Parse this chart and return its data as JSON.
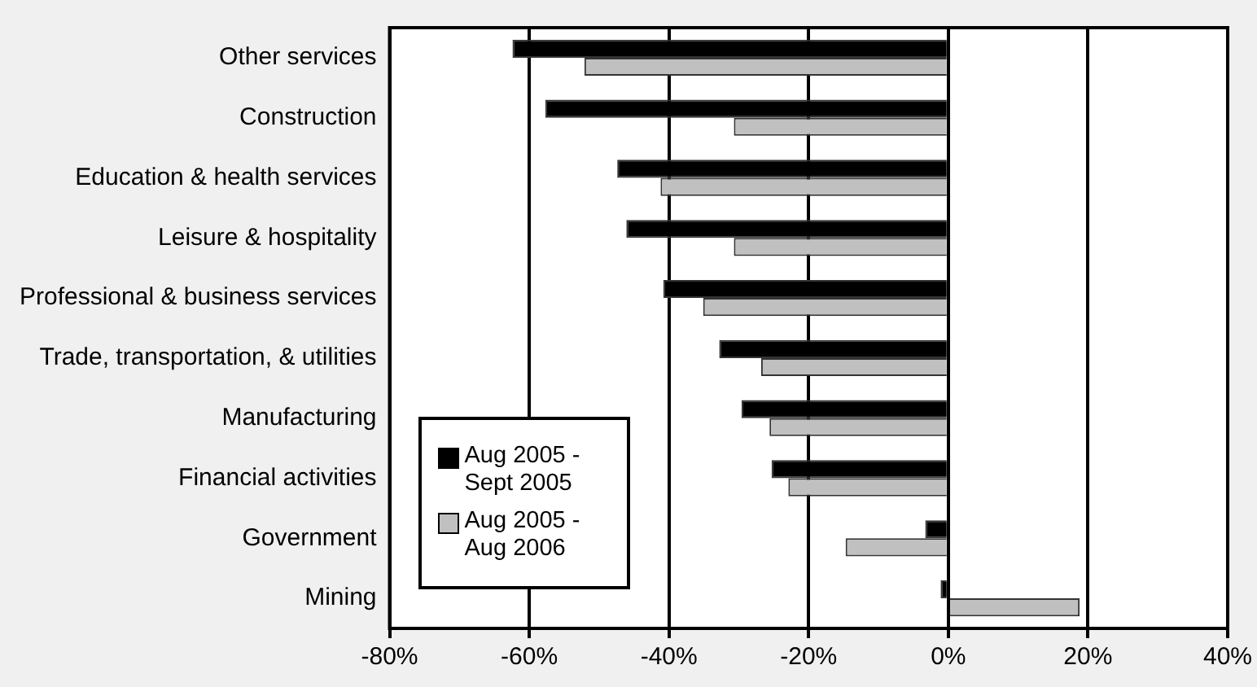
{
  "chart_data": {
    "type": "bar",
    "orientation": "horizontal",
    "categories": [
      "Other services",
      "Construction",
      "Education & health services",
      "Leisure & hospitality",
      "Professional & business services",
      "Trade, transportation, & utilities",
      "Manufacturing",
      "Financial activities",
      "Government",
      "Mining"
    ],
    "series": [
      {
        "name": "Aug 2005 - Sept 2005",
        "color": "#000000",
        "values": [
          -62.4,
          -57.7,
          -47.4,
          -46.1,
          -40.8,
          -32.8,
          -29.6,
          -25.3,
          -3.3,
          -1.1
        ]
      },
      {
        "name": "Aug 2005 - Aug 2006",
        "color": "#c0c0c0",
        "values": [
          -52.1,
          -30.7,
          -41.2,
          -30.7,
          -35.1,
          -26.8,
          -25.6,
          -22.9,
          -14.7,
          18.8
        ]
      }
    ],
    "xlim": [
      -80,
      40
    ],
    "xticks": [
      {
        "value": -80,
        "label": "-80%"
      },
      {
        "value": -60,
        "label": "-60%"
      },
      {
        "value": -40,
        "label": "-40%"
      },
      {
        "value": -20,
        "label": "-20%"
      },
      {
        "value": 0,
        "label": "0%"
      },
      {
        "value": 20,
        "label": "20%"
      },
      {
        "value": 40,
        "label": "40%"
      }
    ],
    "grid": "x",
    "legend": "bottom left"
  }
}
